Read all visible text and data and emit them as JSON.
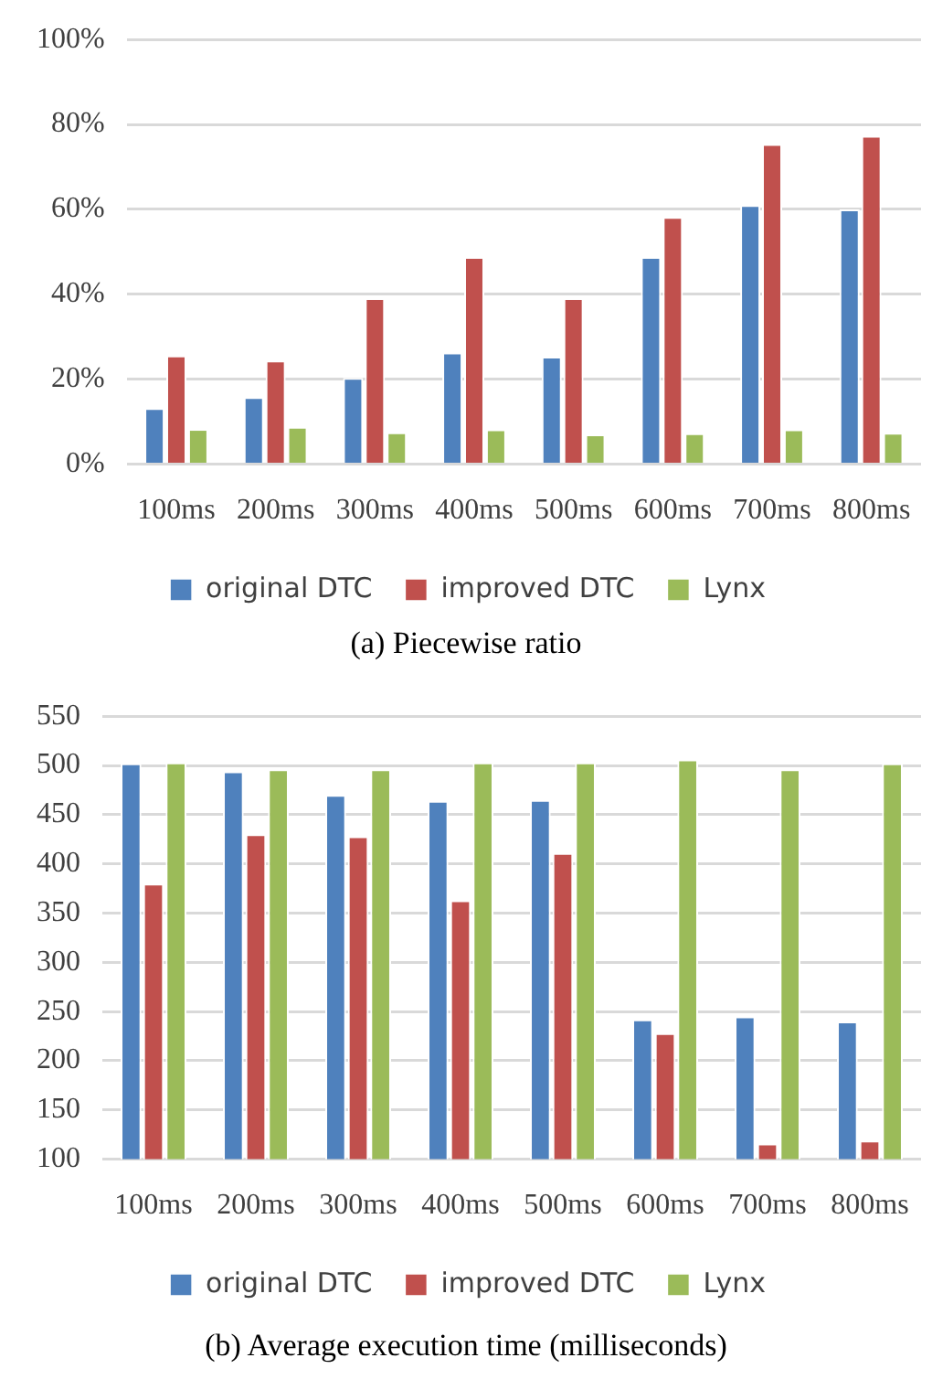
{
  "chart_data": [
    {
      "type": "bar",
      "title": "(a) Piecewise ratio",
      "categories": [
        "100ms",
        "200ms",
        "300ms",
        "400ms",
        "500ms",
        "600ms",
        "700ms",
        "800ms"
      ],
      "series": [
        {
          "name": "original DTC",
          "color": "#4f81bd",
          "values": [
            13.2,
            15.8,
            20.3,
            26.3,
            25.3,
            48.8,
            61,
            60
          ]
        },
        {
          "name": "improved DTC",
          "color": "#c0504d",
          "values": [
            25.6,
            24.4,
            39.1,
            48.8,
            39.1,
            58.2,
            75.4,
            77.3
          ]
        },
        {
          "name": "Lynx",
          "color": "#9bbb59",
          "values": [
            8.3,
            8.8,
            7.5,
            8.2,
            7.0,
            7.3,
            8.2,
            7.4
          ]
        }
      ],
      "ylim": [
        0,
        100
      ],
      "yticks": [
        {
          "value": 0,
          "label": "0%"
        },
        {
          "value": 20,
          "label": "20%"
        },
        {
          "value": 40,
          "label": "40%"
        },
        {
          "value": 60,
          "label": "60%"
        },
        {
          "value": 80,
          "label": "80%"
        },
        {
          "value": 100,
          "label": "100%"
        }
      ],
      "grid": "y",
      "legend": "bottom"
    },
    {
      "type": "bar",
      "title": "(b) Average execution time (milliseconds)",
      "categories": [
        "100ms",
        "200ms",
        "300ms",
        "400ms",
        "500ms",
        "600ms",
        "700ms",
        "800ms"
      ],
      "series": [
        {
          "name": "original DTC",
          "color": "#4f81bd",
          "values": [
            502,
            494,
            470,
            464,
            465,
            242,
            245,
            240
          ]
        },
        {
          "name": "improved DTC",
          "color": "#c0504d",
          "values": [
            380,
            430,
            428,
            363,
            411,
            228,
            116,
            119
          ]
        },
        {
          "name": "Lynx",
          "color": "#9bbb59",
          "values": [
            503,
            496,
            496,
            503,
            503,
            506,
            496,
            502
          ]
        }
      ],
      "ylim": [
        100,
        550
      ],
      "yticks": [
        100,
        150,
        200,
        250,
        300,
        350,
        400,
        450,
        500,
        550
      ],
      "grid": "y",
      "legend": "bottom"
    }
  ]
}
